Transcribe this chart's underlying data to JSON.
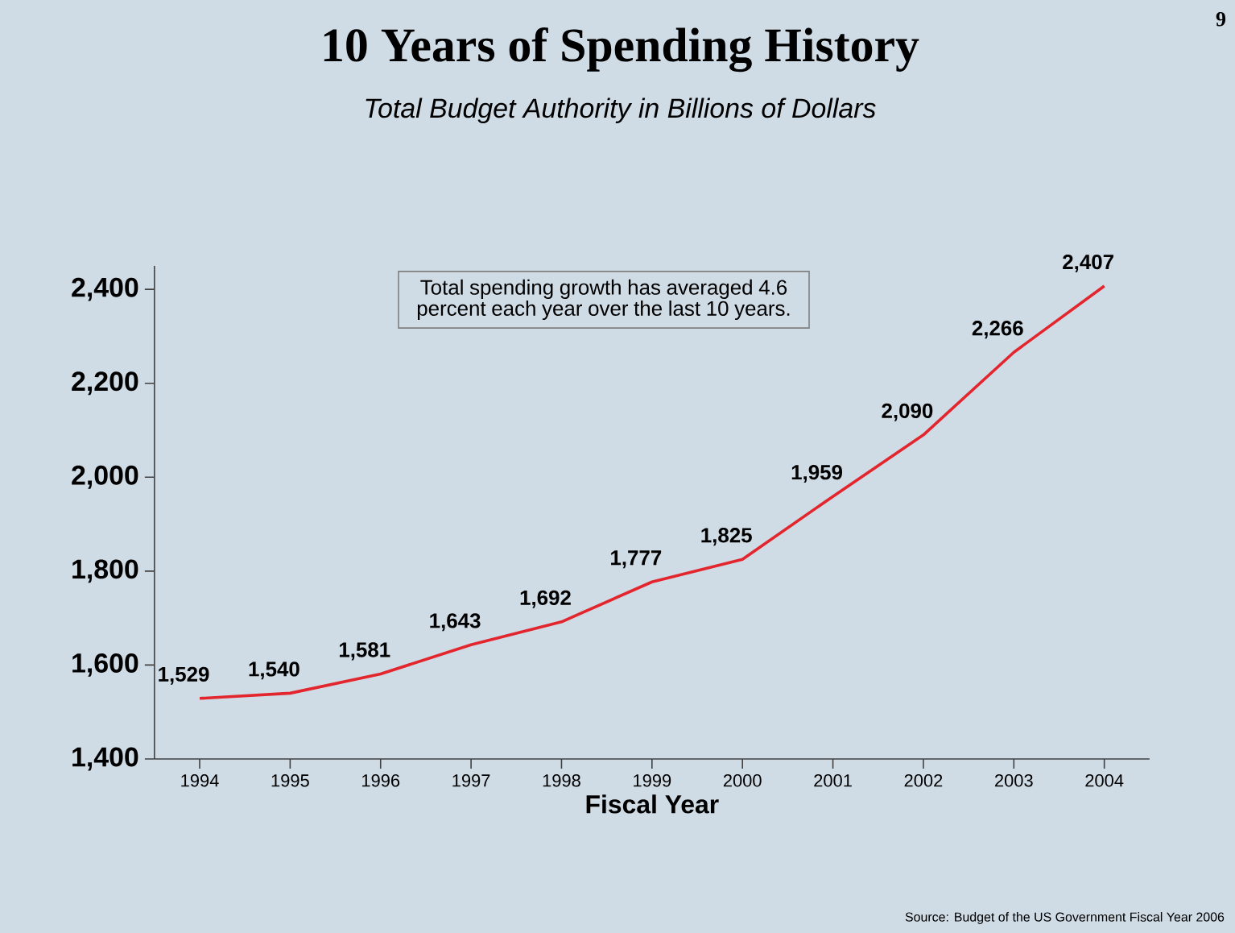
{
  "chart_data": {
    "type": "line",
    "title": "10 Years of Spending History",
    "subtitle": "Total Budget Authority in Billions of Dollars",
    "xlabel": "Fiscal Year",
    "categories": [
      "1994",
      "1995",
      "1996",
      "1997",
      "1998",
      "1999",
      "2000",
      "2001",
      "2002",
      "2003",
      "2004"
    ],
    "series": [
      {
        "color": "#e3262e",
        "values": [
          1529,
          1540,
          1581,
          1643,
          1692,
          1777,
          1825,
          1959,
          2090,
          2266,
          2407
        ],
        "value_labels": [
          "1,529",
          "1,540",
          "1,581",
          "1,643",
          "1,692",
          "1,777",
          "1,825",
          "1,959",
          "2,090",
          "2,266",
          "2,407"
        ]
      }
    ],
    "ylim": [
      1400,
      2450
    ],
    "yticks": [
      {
        "value": 1400,
        "label": "1,400"
      },
      {
        "value": 1600,
        "label": "1,600"
      },
      {
        "value": 1800,
        "label": "1,800"
      },
      {
        "value": 2000,
        "label": "2,000"
      },
      {
        "value": 2200,
        "label": "2,200"
      },
      {
        "value": 2400,
        "label": "2,400"
      }
    ],
    "annotations": [
      "Total spending growth has averaged 4.6 percent each year over the last 10 years.",
      "9",
      "Source: Budget of the US Government Fiscal Year 2006"
    ]
  }
}
